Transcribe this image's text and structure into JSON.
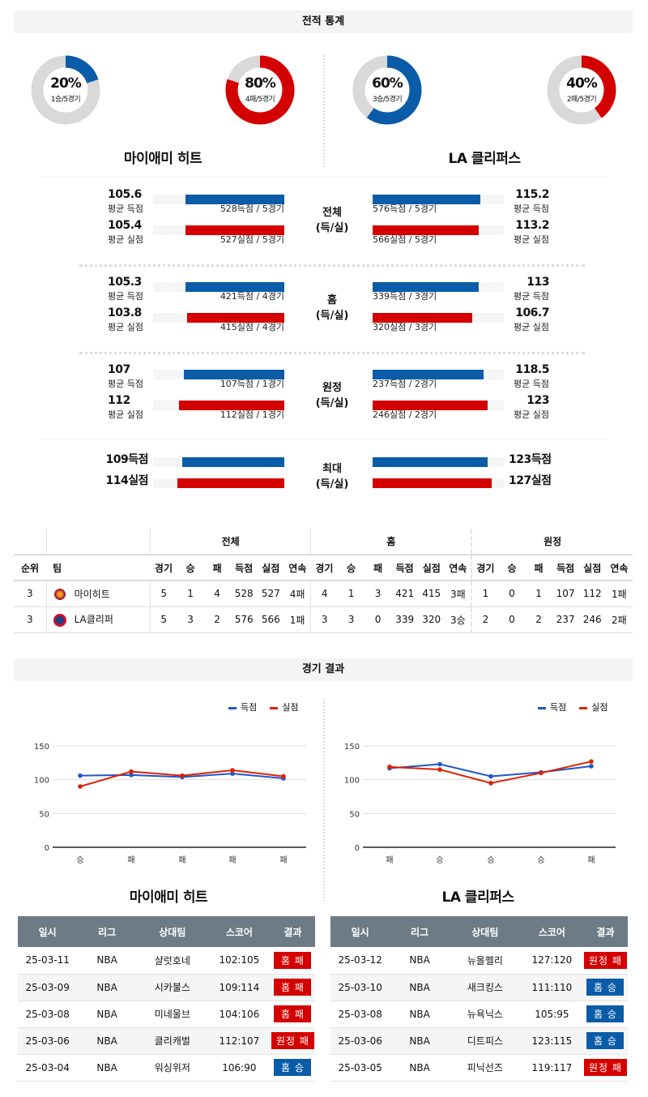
{
  "section_titles": {
    "stats": "전적 통계",
    "results": "경기 결과"
  },
  "colors": {
    "blue": "#0a5ca8",
    "red": "#d40000",
    "gray": "#d9d9d9",
    "chart_blue": "#2255cc",
    "chart_red": "#dd2200",
    "table_header": "#6d7b87"
  },
  "teams": [
    {
      "name": "마이애미 히트",
      "donuts": [
        {
          "pct": 20,
          "pct_label": "20%",
          "sub": "1승/5경기",
          "color": "blue"
        },
        {
          "pct": 80,
          "pct_label": "80%",
          "sub": "4패/5경기",
          "color": "red"
        }
      ]
    },
    {
      "name": "LA 클리퍼스",
      "donuts": [
        {
          "pct": 60,
          "pct_label": "60%",
          "sub": "3승/5경기",
          "color": "blue"
        },
        {
          "pct": 40,
          "pct_label": "40%",
          "sub": "2패/5경기",
          "color": "red"
        }
      ]
    }
  ],
  "stat_sections": [
    {
      "label1": "전체",
      "label2": "(득/실)",
      "left": [
        {
          "value": "105.6",
          "num": 105.6,
          "label": "평균 득점",
          "caption": "528득점 / 5경기"
        },
        {
          "value": "105.4",
          "num": 105.4,
          "label": "평균 실점",
          "caption": "527실점 / 5경기"
        }
      ],
      "right": [
        {
          "value": "115.2",
          "num": 115.2,
          "label": "평균 득점",
          "caption": "576득점 / 5경기"
        },
        {
          "value": "113.2",
          "num": 113.2,
          "label": "평균 실점",
          "caption": "566실점 / 5경기"
        }
      ]
    },
    {
      "label1": "홈",
      "label2": "(득/실)",
      "left": [
        {
          "value": "105.3",
          "num": 105.3,
          "label": "평균 득점",
          "caption": "421득점 / 4경기"
        },
        {
          "value": "103.8",
          "num": 103.8,
          "label": "평균 실점",
          "caption": "415실점 / 4경기"
        }
      ],
      "right": [
        {
          "value": "113",
          "num": 113,
          "label": "평균 득점",
          "caption": "339득점 / 3경기"
        },
        {
          "value": "106.7",
          "num": 106.7,
          "label": "평균 실점",
          "caption": "320실점 / 3경기"
        }
      ]
    },
    {
      "label1": "원정",
      "label2": "(득/실)",
      "left": [
        {
          "value": "107",
          "num": 107,
          "label": "평균 득점",
          "caption": "107득점 / 1경기"
        },
        {
          "value": "112",
          "num": 112,
          "label": "평균 실점",
          "caption": "112실점 / 1경기"
        }
      ],
      "right": [
        {
          "value": "118.5",
          "num": 118.5,
          "label": "평균 득점",
          "caption": "237득점 / 2경기"
        },
        {
          "value": "123",
          "num": 123,
          "label": "평균 실점",
          "caption": "246실점 / 2경기"
        }
      ]
    },
    {
      "label1": "최대",
      "label2": "(득/실)",
      "left": [
        {
          "value": "109득점",
          "num": 109
        },
        {
          "value": "114실점",
          "num": 114
        }
      ],
      "right": [
        {
          "value": "123득점",
          "num": 123
        },
        {
          "value": "127실점",
          "num": 127
        }
      ]
    }
  ],
  "standings": {
    "groups": [
      "전체",
      "홈",
      "원정"
    ],
    "headers": [
      "순위",
      "팀"
    ],
    "sub_headers": [
      "경기",
      "승",
      "패",
      "득점",
      "실점",
      "연속"
    ],
    "rows": [
      {
        "rank": "3",
        "team": "마이히트",
        "logo": "heat-logo",
        "cells": [
          "5",
          "1",
          "4",
          "528",
          "527",
          "4패",
          "4",
          "1",
          "3",
          "421",
          "415",
          "3패",
          "1",
          "0",
          "1",
          "107",
          "112",
          "1패"
        ]
      },
      {
        "rank": "3",
        "team": "LA클리퍼",
        "logo": "clippers-logo",
        "cells": [
          "5",
          "3",
          "2",
          "576",
          "566",
          "1패",
          "3",
          "3",
          "0",
          "339",
          "320",
          "3승",
          "2",
          "0",
          "2",
          "237",
          "246",
          "2패"
        ]
      }
    ]
  },
  "chart_data": [
    {
      "type": "line",
      "categories": [
        "승",
        "패",
        "패",
        "패",
        "패"
      ],
      "ylim": [
        0,
        150
      ],
      "yticks": [
        0,
        50,
        100,
        150
      ],
      "grid": true,
      "legend": "top-right",
      "series": [
        {
          "name": "득점",
          "color": "chart_blue",
          "values": [
            106,
            107,
            104,
            109,
            102
          ]
        },
        {
          "name": "실점",
          "color": "chart_red",
          "values": [
            90,
            112,
            106,
            114,
            105
          ]
        }
      ]
    },
    {
      "type": "line",
      "categories": [
        "패",
        "승",
        "승",
        "승",
        "패"
      ],
      "ylim": [
        0,
        150
      ],
      "yticks": [
        0,
        50,
        100,
        150
      ],
      "grid": true,
      "legend": "top-right",
      "series": [
        {
          "name": "득점",
          "color": "chart_blue",
          "values": [
            117,
            123,
            105,
            111,
            120
          ]
        },
        {
          "name": "실점",
          "color": "chart_red",
          "values": [
            119,
            115,
            95,
            110,
            127
          ]
        }
      ]
    }
  ],
  "results": {
    "headers": [
      "일시",
      "리그",
      "상대팀",
      "스코어",
      "결과"
    ],
    "tables": [
      {
        "team": "마이애미 히트",
        "rows": [
          {
            "date": "25-03-11",
            "league": "NBA",
            "opp": "샬럿호네",
            "score": "102:105",
            "result": "홈 패",
            "win": false
          },
          {
            "date": "25-03-09",
            "league": "NBA",
            "opp": "시카불스",
            "score": "109:114",
            "result": "홈 패",
            "win": false
          },
          {
            "date": "25-03-08",
            "league": "NBA",
            "opp": "미네울브",
            "score": "104:106",
            "result": "홈 패",
            "win": false
          },
          {
            "date": "25-03-06",
            "league": "NBA",
            "opp": "클리캐벌",
            "score": "112:107",
            "result": "원정 패",
            "win": false
          },
          {
            "date": "25-03-04",
            "league": "NBA",
            "opp": "워싱위저",
            "score": "106:90",
            "result": "홈 승",
            "win": true
          }
        ]
      },
      {
        "team": "LA 클리퍼스",
        "rows": [
          {
            "date": "25-03-12",
            "league": "NBA",
            "opp": "뉴올펠리",
            "score": "127:120",
            "result": "원정 패",
            "win": false
          },
          {
            "date": "25-03-10",
            "league": "NBA",
            "opp": "새크킹스",
            "score": "111:110",
            "result": "홈 승",
            "win": true
          },
          {
            "date": "25-03-08",
            "league": "NBA",
            "opp": "뉴욕닉스",
            "score": "105:95",
            "result": "홈 승",
            "win": true
          },
          {
            "date": "25-03-06",
            "league": "NBA",
            "opp": "디트피스",
            "score": "123:115",
            "result": "홈 승",
            "win": true
          },
          {
            "date": "25-03-05",
            "league": "NBA",
            "opp": "피닉선즈",
            "score": "119:117",
            "result": "원정 패",
            "win": false
          }
        ]
      }
    ]
  }
}
